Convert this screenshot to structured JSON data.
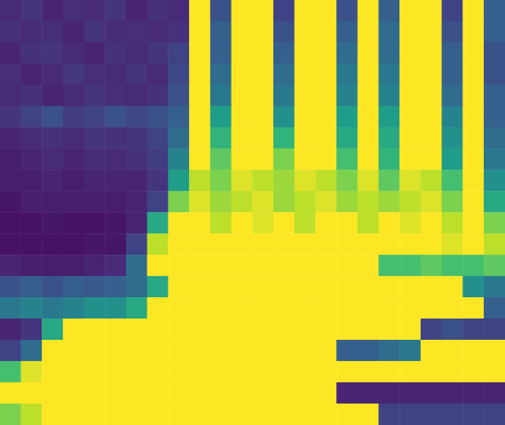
{
  "chart_data": {
    "type": "heatmap",
    "tick_labels": false,
    "grid": false,
    "value_range": [
      0,
      1
    ],
    "cells": [
      [
        0.12,
        0.15,
        0.1,
        0.13,
        0.12,
        0.15,
        0.1,
        0.14,
        0.12,
        1.0,
        0.25,
        1.0,
        1.0,
        0.2,
        1.0,
        1.0,
        0.25,
        1.0,
        0.3,
        1.0,
        1.0,
        0.2,
        1.0,
        0.3
      ],
      [
        0.14,
        0.12,
        0.13,
        0.1,
        0.15,
        0.12,
        0.13,
        0.12,
        0.14,
        1.0,
        0.3,
        1.0,
        1.0,
        0.25,
        1.0,
        1.0,
        0.3,
        1.0,
        0.35,
        1.0,
        1.0,
        0.25,
        1.0,
        0.3
      ],
      [
        0.1,
        0.14,
        0.15,
        0.12,
        0.1,
        0.14,
        0.12,
        0.15,
        0.2,
        1.0,
        0.3,
        1.0,
        1.0,
        0.3,
        1.0,
        1.0,
        0.35,
        1.0,
        0.35,
        1.0,
        1.0,
        0.3,
        1.0,
        0.25
      ],
      [
        0.13,
        0.1,
        0.12,
        0.16,
        0.13,
        0.12,
        0.15,
        0.12,
        0.22,
        1.0,
        0.35,
        1.0,
        1.0,
        0.35,
        1.0,
        1.0,
        0.4,
        1.0,
        0.4,
        1.0,
        1.0,
        0.3,
        1.0,
        0.25
      ],
      [
        0.12,
        0.14,
        0.1,
        0.12,
        0.15,
        0.13,
        0.12,
        0.14,
        0.25,
        1.0,
        0.4,
        1.0,
        1.0,
        0.4,
        1.0,
        1.0,
        0.45,
        1.0,
        0.45,
        1.0,
        1.0,
        0.35,
        1.0,
        0.3
      ],
      [
        0.15,
        0.2,
        0.25,
        0.18,
        0.2,
        0.25,
        0.22,
        0.25,
        0.3,
        1.0,
        0.55,
        1.0,
        1.0,
        0.5,
        1.0,
        1.0,
        0.55,
        1.0,
        0.55,
        1.0,
        1.0,
        0.45,
        1.0,
        0.3
      ],
      [
        0.1,
        0.12,
        0.14,
        0.12,
        0.15,
        0.14,
        0.15,
        0.2,
        0.35,
        1.0,
        0.65,
        1.0,
        1.0,
        0.65,
        1.0,
        1.0,
        0.6,
        1.0,
        0.6,
        1.0,
        1.0,
        0.5,
        1.0,
        0.35
      ],
      [
        0.08,
        0.1,
        0.12,
        0.1,
        0.12,
        0.12,
        0.14,
        0.18,
        0.45,
        1.0,
        0.75,
        1.0,
        1.0,
        0.8,
        1.0,
        1.0,
        0.7,
        1.0,
        0.65,
        1.0,
        1.0,
        0.55,
        1.0,
        0.4
      ],
      [
        0.08,
        0.08,
        0.1,
        0.08,
        0.1,
        0.1,
        0.1,
        0.15,
        0.55,
        0.9,
        0.8,
        0.95,
        0.9,
        0.85,
        0.95,
        0.9,
        0.8,
        0.95,
        0.75,
        0.95,
        0.9,
        0.7,
        1.0,
        0.5
      ],
      [
        0.06,
        0.08,
        0.08,
        0.08,
        0.08,
        0.08,
        0.1,
        0.2,
        0.8,
        0.95,
        0.85,
        0.9,
        0.95,
        0.85,
        0.9,
        0.95,
        0.85,
        0.9,
        0.85,
        0.9,
        0.95,
        0.8,
        1.0,
        0.6
      ],
      [
        0.05,
        0.05,
        0.06,
        0.05,
        0.05,
        0.06,
        0.1,
        0.6,
        1.0,
        1.0,
        0.9,
        1.0,
        0.95,
        1.0,
        0.9,
        1.0,
        1.0,
        0.9,
        1.0,
        0.95,
        1.0,
        0.9,
        1.0,
        0.8
      ],
      [
        0.05,
        0.05,
        0.05,
        0.05,
        0.06,
        0.06,
        0.2,
        0.9,
        1.0,
        1.0,
        1.0,
        1.0,
        1.0,
        1.0,
        1.0,
        1.0,
        1.0,
        1.0,
        1.0,
        1.0,
        1.0,
        0.95,
        1.0,
        0.9
      ],
      [
        0.1,
        0.08,
        0.08,
        0.08,
        0.1,
        0.12,
        0.35,
        1.0,
        1.0,
        1.0,
        1.0,
        1.0,
        1.0,
        1.0,
        1.0,
        1.0,
        1.0,
        1.0,
        0.7,
        0.7,
        0.75,
        0.7,
        0.7,
        0.75
      ],
      [
        0.25,
        0.3,
        0.25,
        0.3,
        0.28,
        0.3,
        0.35,
        0.6,
        1.0,
        1.0,
        1.0,
        1.0,
        1.0,
        1.0,
        1.0,
        1.0,
        1.0,
        1.0,
        1.0,
        1.0,
        1.0,
        1.0,
        0.5,
        0.4
      ],
      [
        0.4,
        0.45,
        0.4,
        0.45,
        0.5,
        0.5,
        0.6,
        1.0,
        1.0,
        1.0,
        1.0,
        1.0,
        1.0,
        1.0,
        1.0,
        1.0,
        1.0,
        1.0,
        1.0,
        1.0,
        1.0,
        1.0,
        1.0,
        0.3
      ],
      [
        0.1,
        0.15,
        0.6,
        1.0,
        1.0,
        1.0,
        1.0,
        1.0,
        1.0,
        1.0,
        1.0,
        1.0,
        1.0,
        1.0,
        1.0,
        1.0,
        1.0,
        1.0,
        1.0,
        1.0,
        0.2,
        0.25,
        0.2,
        0.2
      ],
      [
        0.2,
        0.35,
        1.0,
        1.0,
        1.0,
        1.0,
        1.0,
        1.0,
        1.0,
        1.0,
        1.0,
        1.0,
        1.0,
        1.0,
        1.0,
        1.0,
        0.3,
        0.3,
        0.35,
        0.4,
        1.0,
        1.0,
        1.0,
        1.0
      ],
      [
        0.7,
        0.95,
        1.0,
        1.0,
        1.0,
        1.0,
        1.0,
        1.0,
        1.0,
        1.0,
        1.0,
        1.0,
        1.0,
        1.0,
        1.0,
        1.0,
        1.0,
        1.0,
        1.0,
        1.0,
        1.0,
        1.0,
        1.0,
        1.0
      ],
      [
        1.0,
        1.0,
        1.0,
        1.0,
        1.0,
        1.0,
        1.0,
        1.0,
        1.0,
        1.0,
        1.0,
        1.0,
        1.0,
        1.0,
        1.0,
        1.0,
        0.1,
        0.1,
        0.1,
        0.1,
        0.1,
        0.1,
        0.1,
        0.1
      ],
      [
        0.8,
        0.9,
        1.0,
        1.0,
        1.0,
        1.0,
        1.0,
        1.0,
        1.0,
        1.0,
        1.0,
        1.0,
        1.0,
        1.0,
        1.0,
        1.0,
        1.0,
        1.0,
        0.2,
        0.2,
        0.2,
        0.2,
        0.2,
        0.2
      ]
    ]
  }
}
